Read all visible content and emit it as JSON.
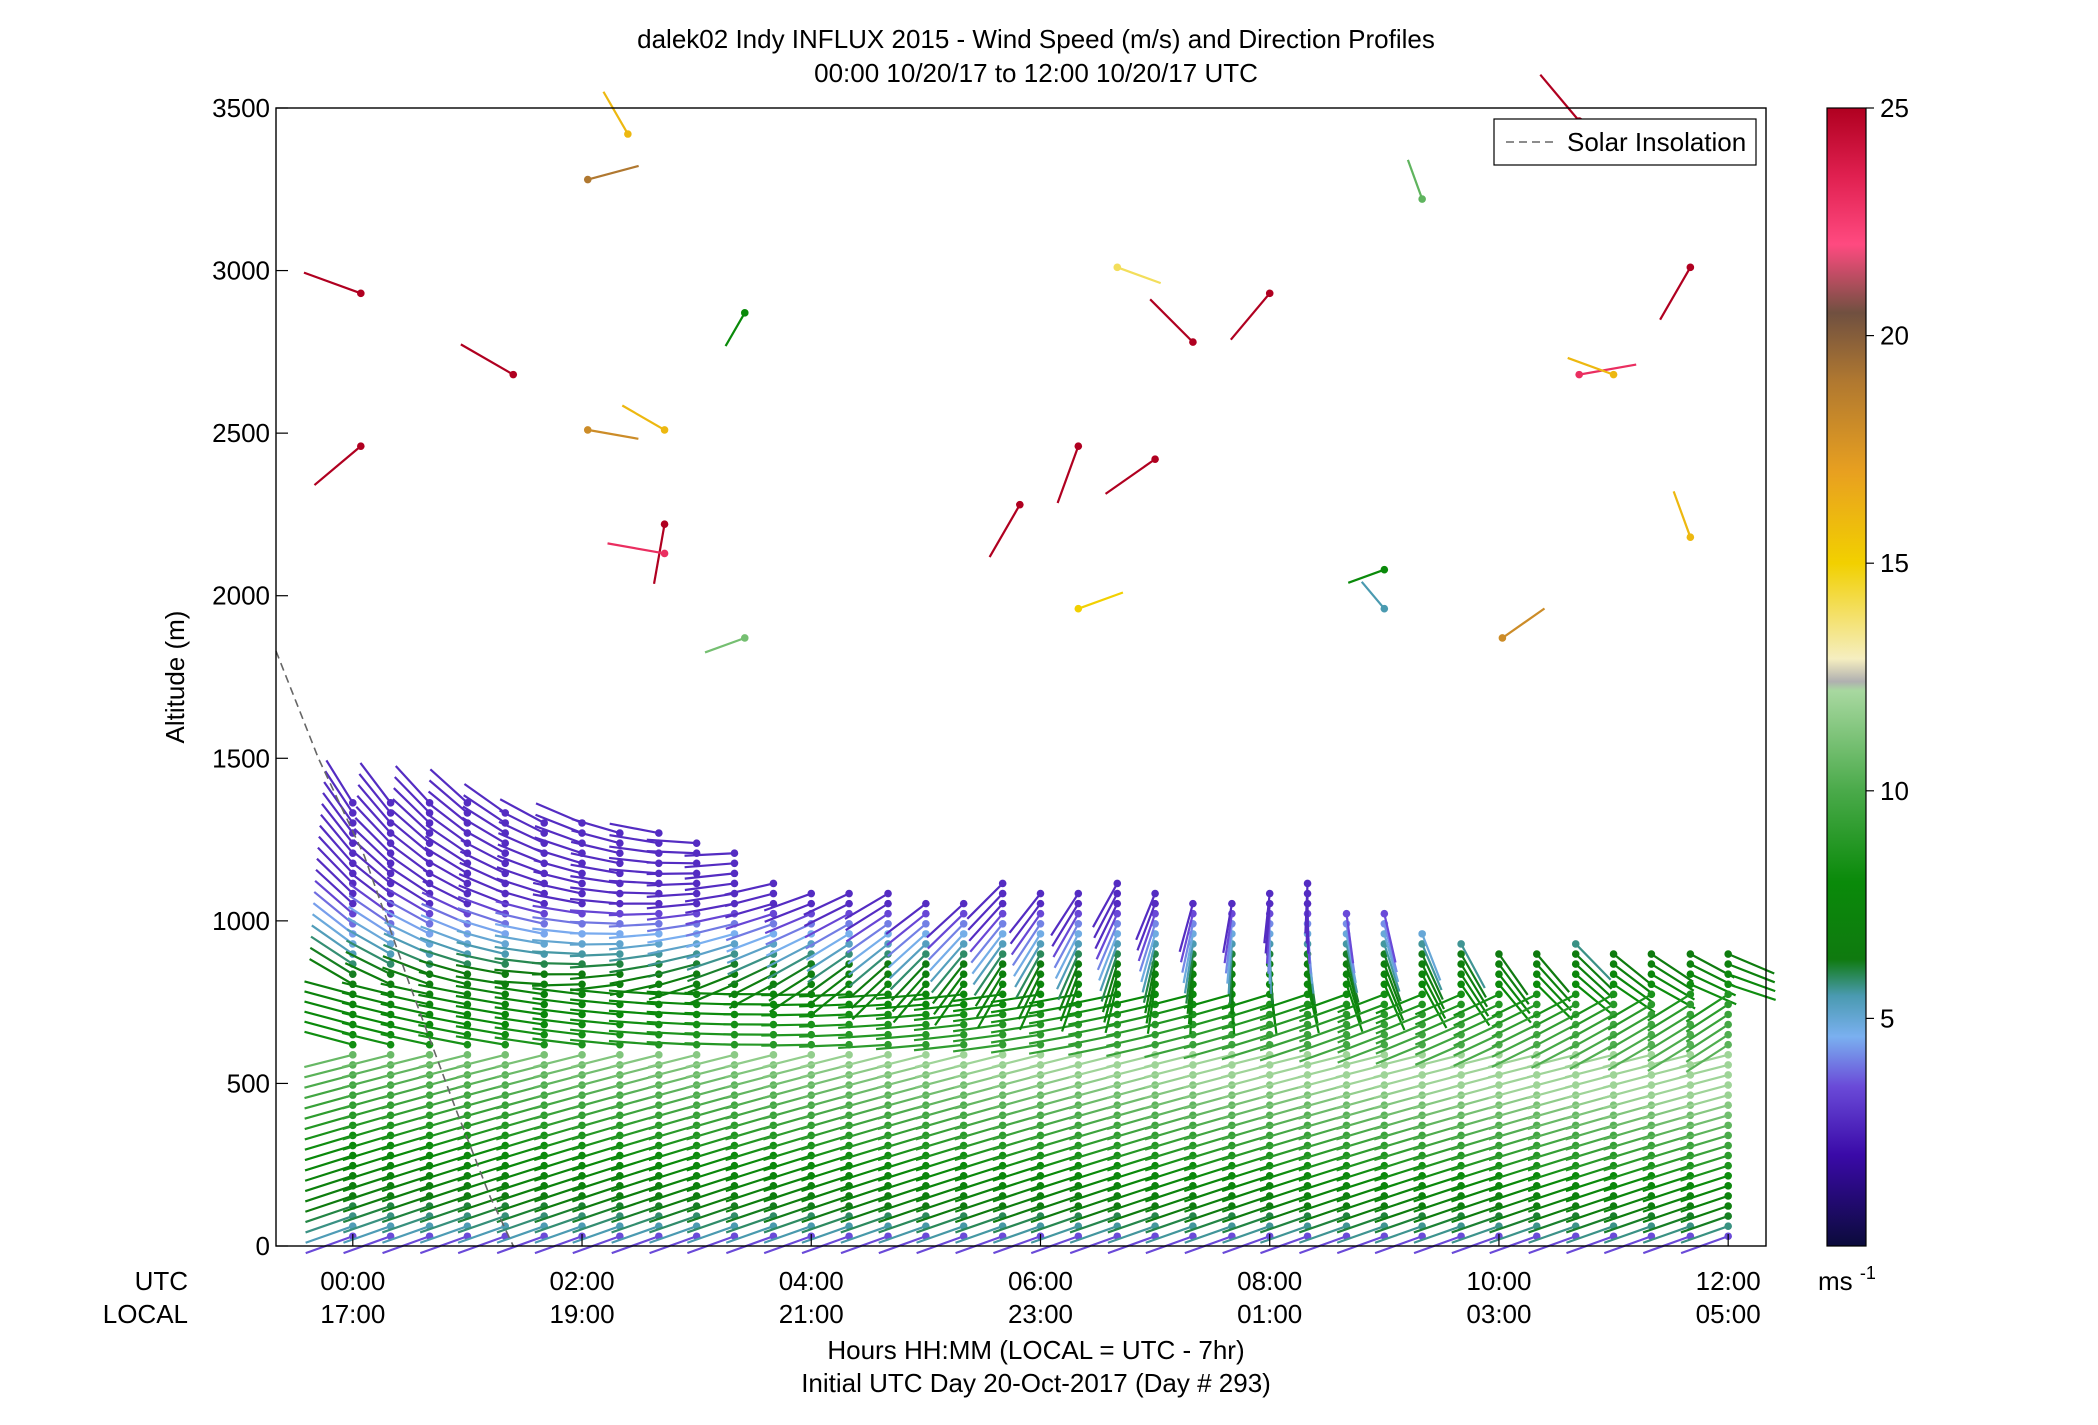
{
  "chart_data": {
    "type": "scatter",
    "subtype": "wind-barb-profile",
    "title_line1": "dalek02 Indy INFLUX 2015 - Wind Speed (m/s) and Direction Profiles",
    "title_line2": "00:00 10/20/17 to 12:00 10/20/17  UTC",
    "ylabel": "Altitude (m)",
    "xlabel_line1": "Hours HH:MM  (LOCAL = UTC - 7hr)",
    "xlabel_line2": "Initial UTC Day 20-Oct-2017 (Day # 293)",
    "x_row_label_utc": "UTC",
    "x_row_label_local": "LOCAL",
    "ylim": [
      0,
      3500
    ],
    "xlim_hours": [
      -0.67,
      12.33
    ],
    "y_ticks": [
      "0",
      "500",
      "1000",
      "1500",
      "2000",
      "2500",
      "3000",
      "3500"
    ],
    "x_ticks_utc": [
      "00:00",
      "02:00",
      "04:00",
      "06:00",
      "08:00",
      "10:00",
      "12:00"
    ],
    "x_ticks_local": [
      "17:00",
      "19:00",
      "21:00",
      "23:00",
      "01:00",
      "03:00",
      "05:00"
    ],
    "legend": {
      "entry": "Solar Insolation",
      "style": "dashed",
      "color": "#666666",
      "placement": "top-right"
    },
    "colorbar": {
      "ticks": [
        "5",
        "10",
        "15",
        "20",
        "25"
      ],
      "unit_label": "ms",
      "unit_exponent": "-1",
      "range": [
        0,
        25
      ],
      "stops": [
        {
          "v": 0,
          "color": "#0b0b3b"
        },
        {
          "v": 2,
          "color": "#3a0aa8"
        },
        {
          "v": 3.5,
          "color": "#6a4ad8"
        },
        {
          "v": 4.6,
          "color": "#7ab0f0"
        },
        {
          "v": 5.5,
          "color": "#4a9ab0"
        },
        {
          "v": 6.3,
          "color": "#0f7a0f"
        },
        {
          "v": 8,
          "color": "#0a8a0a"
        },
        {
          "v": 10,
          "color": "#4aaa4a"
        },
        {
          "v": 12.2,
          "color": "#a8d8a0"
        },
        {
          "v": 12.4,
          "color": "#b0b0b0"
        },
        {
          "v": 12.9,
          "color": "#f5eec0"
        },
        {
          "v": 15,
          "color": "#f2d000"
        },
        {
          "v": 17,
          "color": "#e8a020"
        },
        {
          "v": 19,
          "color": "#b07830"
        },
        {
          "v": 20.5,
          "color": "#705040"
        },
        {
          "v": 22,
          "color": "#ff4a80"
        },
        {
          "v": 23.5,
          "color": "#e02050"
        },
        {
          "v": 25,
          "color": "#b00020"
        }
      ]
    },
    "solar_insolation_curve": [
      [
        -0.67,
        1830
      ],
      [
        -0.3,
        1500
      ],
      [
        0.1,
        1200
      ],
      [
        0.5,
        800
      ],
      [
        0.9,
        420
      ],
      [
        1.2,
        150
      ],
      [
        1.4,
        0
      ]
    ],
    "profile_times_hours": [
      0,
      0.33,
      0.67,
      1,
      1.33,
      1.67,
      2,
      2.33,
      2.67,
      3,
      3.33,
      3.67,
      4,
      4.33,
      4.67,
      5,
      5.33,
      5.67,
      6,
      6.33,
      6.67,
      7,
      7.33,
      7.67,
      8,
      8.33,
      8.67,
      9,
      9.33,
      9.67,
      10,
      10.33,
      10.67,
      11,
      11.33,
      11.67,
      12
    ],
    "profile_top_altitudes_m": [
      1380,
      1380,
      1370,
      1380,
      1360,
      1330,
      1330,
      1300,
      1280,
      1250,
      1230,
      1120,
      1090,
      1090,
      1090,
      1080,
      1080,
      1130,
      1110,
      1100,
      1130,
      1110,
      1080,
      1080,
      1090,
      1130,
      1050,
      1050,
      990,
      940,
      900,
      910,
      940,
      910,
      900,
      900,
      900
    ],
    "upper_barbs": [
      {
        "t": 0.07,
        "alt": 2930,
        "speed": 25,
        "dir": 290
      },
      {
        "t": 0.07,
        "alt": 2460,
        "speed": 25,
        "dir": 230
      },
      {
        "t": 1.4,
        "alt": 2680,
        "speed": 25,
        "dir": 300
      },
      {
        "t": 2.05,
        "alt": 3280,
        "speed": 19,
        "dir": 75
      },
      {
        "t": 2.05,
        "alt": 2510,
        "speed": 18,
        "dir": 100
      },
      {
        "t": 2.4,
        "alt": 3420,
        "speed": 16,
        "dir": 330
      },
      {
        "t": 2.72,
        "alt": 2510,
        "speed": 16,
        "dir": 300
      },
      {
        "t": 2.72,
        "alt": 2220,
        "speed": 25,
        "dir": 190
      },
      {
        "t": 2.72,
        "alt": 2130,
        "speed": 23,
        "dir": 280
      },
      {
        "t": 3.42,
        "alt": 2870,
        "speed": 8,
        "dir": 210
      },
      {
        "t": 3.42,
        "alt": 1870,
        "speed": 11,
        "dir": 250
      },
      {
        "t": 5.82,
        "alt": 2280,
        "speed": 25,
        "dir": 210
      },
      {
        "t": 6.33,
        "alt": 2460,
        "speed": 25,
        "dir": 200
      },
      {
        "t": 6.33,
        "alt": 1960,
        "speed": 15,
        "dir": 70
      },
      {
        "t": 6.67,
        "alt": 3010,
        "speed": 14,
        "dir": 110
      },
      {
        "t": 7.0,
        "alt": 2420,
        "speed": 25,
        "dir": 235
      },
      {
        "t": 7.33,
        "alt": 2780,
        "speed": 25,
        "dir": 315
      },
      {
        "t": 8.0,
        "alt": 2930,
        "speed": 25,
        "dir": 220
      },
      {
        "t": 9.0,
        "alt": 2080,
        "speed": 8,
        "dir": 250
      },
      {
        "t": 9.0,
        "alt": 1960,
        "speed": 5.5,
        "dir": 320
      },
      {
        "t": 9.33,
        "alt": 3220,
        "speed": 10.5,
        "dir": 340
      },
      {
        "t": 10.03,
        "alt": 1870,
        "speed": 18,
        "dir": 55
      },
      {
        "t": 10.7,
        "alt": 3460,
        "speed": 25,
        "dir": 320
      },
      {
        "t": 10.7,
        "alt": 2680,
        "speed": 23,
        "dir": 80
      },
      {
        "t": 11.0,
        "alt": 2680,
        "speed": 16,
        "dir": 290
      },
      {
        "t": 11.67,
        "alt": 3010,
        "speed": 25,
        "dir": 210
      },
      {
        "t": 11.67,
        "alt": 2180,
        "speed": 16,
        "dir": 340
      }
    ]
  }
}
